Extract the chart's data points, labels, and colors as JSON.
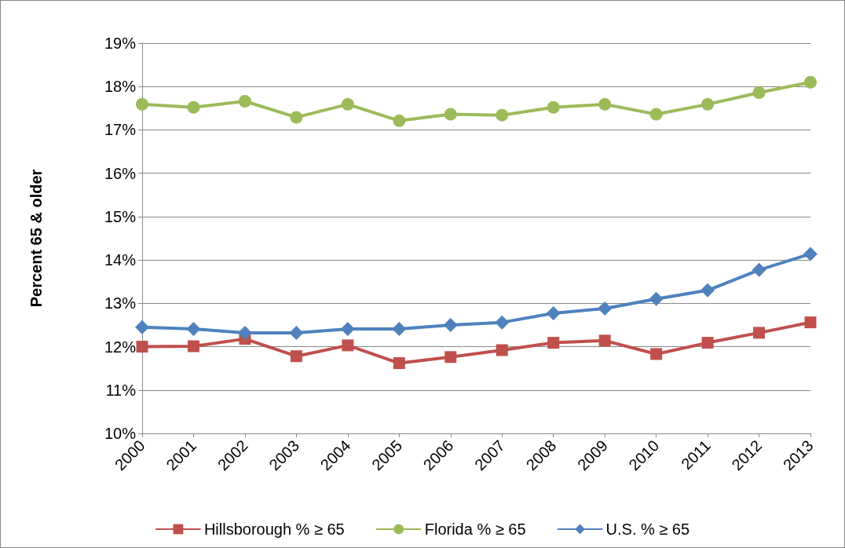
{
  "chart_data": {
    "type": "line",
    "ylabel": "Percent 65 & older",
    "categories": [
      "2000",
      "2001",
      "2002",
      "2003",
      "2004",
      "2005",
      "2006",
      "2007",
      "2008",
      "2009",
      "2010",
      "2011",
      "2012",
      "2013"
    ],
    "series": [
      {
        "name": "Hillsborough % ≥ 65",
        "color": "#c0504d",
        "marker": "square",
        "values": [
          12.0,
          12.01,
          12.18,
          11.78,
          12.03,
          11.62,
          11.76,
          11.92,
          12.09,
          12.14,
          11.83,
          12.09,
          12.32,
          12.56
        ]
      },
      {
        "name": "Florida % ≥ 65",
        "color": "#9bbb59",
        "marker": "circle",
        "values": [
          17.59,
          17.52,
          17.66,
          17.29,
          17.59,
          17.21,
          17.36,
          17.34,
          17.52,
          17.59,
          17.36,
          17.59,
          17.86,
          18.1
        ]
      },
      {
        "name": "U.S. % ≥ 65",
        "color": "#4f81bd",
        "marker": "diamond",
        "values": [
          12.45,
          12.41,
          12.32,
          12.32,
          12.41,
          12.41,
          12.5,
          12.56,
          12.77,
          12.88,
          13.1,
          13.3,
          13.77,
          14.14
        ]
      }
    ],
    "ylim": [
      10,
      19
    ],
    "yticks": [
      {
        "value": 10,
        "label": "10%"
      },
      {
        "value": 11,
        "label": "11%"
      },
      {
        "value": 12,
        "label": "12%"
      },
      {
        "value": 13,
        "label": "13%"
      },
      {
        "value": 14,
        "label": "14%"
      },
      {
        "value": 15,
        "label": "15%"
      },
      {
        "value": 16,
        "label": "16%"
      },
      {
        "value": 17,
        "label": "17%"
      },
      {
        "value": 18,
        "label": "18%"
      },
      {
        "value": 19,
        "label": "19%"
      }
    ],
    "grid": "y",
    "legend": "bottom",
    "line_style": "solid"
  }
}
